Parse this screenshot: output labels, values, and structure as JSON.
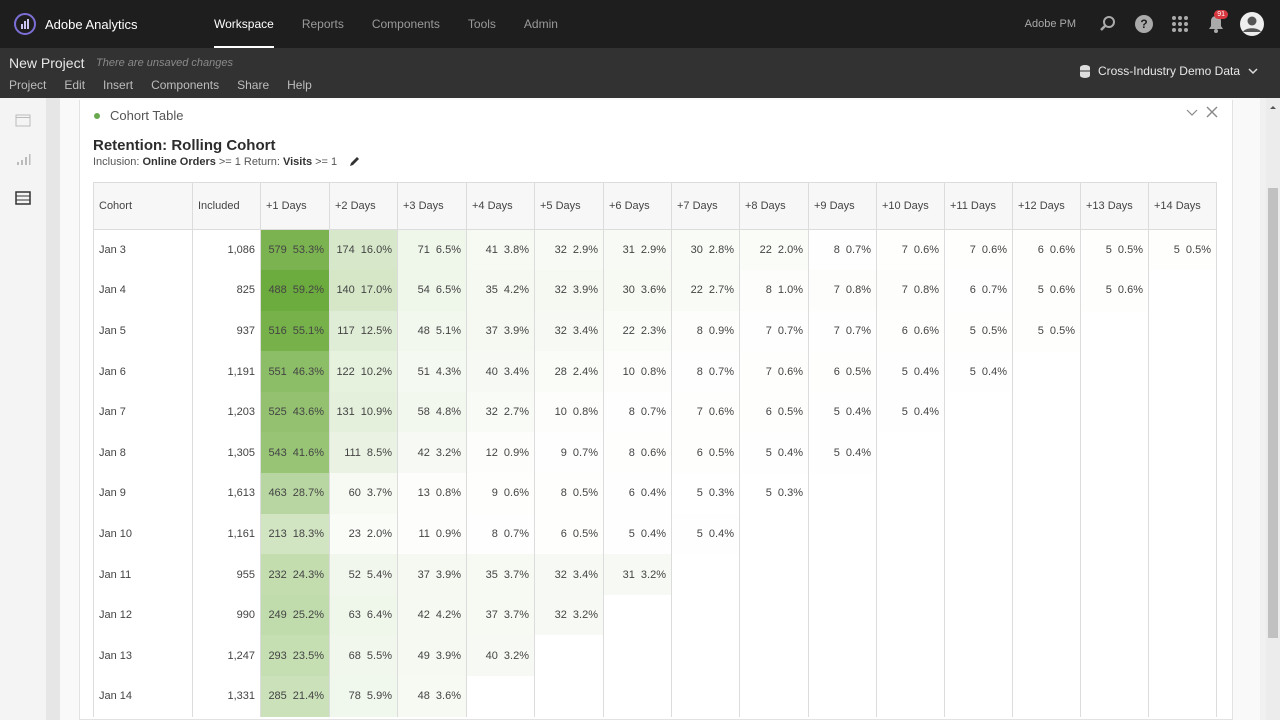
{
  "app": {
    "name": "Adobe Analytics"
  },
  "nav": [
    {
      "label": "Workspace",
      "active": true
    },
    {
      "label": "Reports"
    },
    {
      "label": "Components"
    },
    {
      "label": "Tools"
    },
    {
      "label": "Admin"
    }
  ],
  "top_right": {
    "org": "Adobe PM",
    "notifications": "91"
  },
  "project": {
    "title": "New Project",
    "status": "There are unsaved changes",
    "menu": [
      "Project",
      "Edit",
      "Insert",
      "Components",
      "Share",
      "Help"
    ],
    "dataset": "Cross-Industry Demo Data"
  },
  "panel": {
    "title": "Cohort Table",
    "viz_title": "Retention: Rolling Cohort",
    "inclusion_label": "Inclusion:",
    "inclusion_metric": "Online Orders",
    "inclusion_cond": ">= 1",
    "return_label": "Return:",
    "return_metric": "Visits",
    "return_cond": ">= 1"
  },
  "table": {
    "headers": [
      "Cohort",
      "Included",
      "+1 Days",
      "+2 Days",
      "+3 Days",
      "+4 Days",
      "+5 Days",
      "+6 Days",
      "+7 Days",
      "+8 Days",
      "+9 Days",
      "+10 Days",
      "+11 Days",
      "+12 Days",
      "+13 Days",
      "+14 Days"
    ],
    "rows": [
      {
        "cohort": "Jan 3",
        "included": "1,086",
        "cells": [
          [
            "579",
            "53.3%"
          ],
          [
            "174",
            "16.0%"
          ],
          [
            "71",
            "6.5%"
          ],
          [
            "41",
            "3.8%"
          ],
          [
            "32",
            "2.9%"
          ],
          [
            "31",
            "2.9%"
          ],
          [
            "30",
            "2.8%"
          ],
          [
            "22",
            "2.0%"
          ],
          [
            "8",
            "0.7%"
          ],
          [
            "7",
            "0.6%"
          ],
          [
            "7",
            "0.6%"
          ],
          [
            "6",
            "0.6%"
          ],
          [
            "5",
            "0.5%"
          ],
          [
            "5",
            "0.5%"
          ]
        ]
      },
      {
        "cohort": "Jan 4",
        "included": "825",
        "cells": [
          [
            "488",
            "59.2%"
          ],
          [
            "140",
            "17.0%"
          ],
          [
            "54",
            "6.5%"
          ],
          [
            "35",
            "4.2%"
          ],
          [
            "32",
            "3.9%"
          ],
          [
            "30",
            "3.6%"
          ],
          [
            "22",
            "2.7%"
          ],
          [
            "8",
            "1.0%"
          ],
          [
            "7",
            "0.8%"
          ],
          [
            "7",
            "0.8%"
          ],
          [
            "6",
            "0.7%"
          ],
          [
            "5",
            "0.6%"
          ],
          [
            "5",
            "0.6%"
          ]
        ]
      },
      {
        "cohort": "Jan 5",
        "included": "937",
        "cells": [
          [
            "516",
            "55.1%"
          ],
          [
            "117",
            "12.5%"
          ],
          [
            "48",
            "5.1%"
          ],
          [
            "37",
            "3.9%"
          ],
          [
            "32",
            "3.4%"
          ],
          [
            "22",
            "2.3%"
          ],
          [
            "8",
            "0.9%"
          ],
          [
            "7",
            "0.7%"
          ],
          [
            "7",
            "0.7%"
          ],
          [
            "6",
            "0.6%"
          ],
          [
            "5",
            "0.5%"
          ],
          [
            "5",
            "0.5%"
          ]
        ]
      },
      {
        "cohort": "Jan 6",
        "included": "1,191",
        "cells": [
          [
            "551",
            "46.3%"
          ],
          [
            "122",
            "10.2%"
          ],
          [
            "51",
            "4.3%"
          ],
          [
            "40",
            "3.4%"
          ],
          [
            "28",
            "2.4%"
          ],
          [
            "10",
            "0.8%"
          ],
          [
            "8",
            "0.7%"
          ],
          [
            "7",
            "0.6%"
          ],
          [
            "6",
            "0.5%"
          ],
          [
            "5",
            "0.4%"
          ],
          [
            "5",
            "0.4%"
          ]
        ]
      },
      {
        "cohort": "Jan 7",
        "included": "1,203",
        "cells": [
          [
            "525",
            "43.6%"
          ],
          [
            "131",
            "10.9%"
          ],
          [
            "58",
            "4.8%"
          ],
          [
            "32",
            "2.7%"
          ],
          [
            "10",
            "0.8%"
          ],
          [
            "8",
            "0.7%"
          ],
          [
            "7",
            "0.6%"
          ],
          [
            "6",
            "0.5%"
          ],
          [
            "5",
            "0.4%"
          ],
          [
            "5",
            "0.4%"
          ]
        ]
      },
      {
        "cohort": "Jan 8",
        "included": "1,305",
        "cells": [
          [
            "543",
            "41.6%"
          ],
          [
            "111",
            "8.5%"
          ],
          [
            "42",
            "3.2%"
          ],
          [
            "12",
            "0.9%"
          ],
          [
            "9",
            "0.7%"
          ],
          [
            "8",
            "0.6%"
          ],
          [
            "6",
            "0.5%"
          ],
          [
            "5",
            "0.4%"
          ],
          [
            "5",
            "0.4%"
          ]
        ]
      },
      {
        "cohort": "Jan 9",
        "included": "1,613",
        "cells": [
          [
            "463",
            "28.7%"
          ],
          [
            "60",
            "3.7%"
          ],
          [
            "13",
            "0.8%"
          ],
          [
            "9",
            "0.6%"
          ],
          [
            "8",
            "0.5%"
          ],
          [
            "6",
            "0.4%"
          ],
          [
            "5",
            "0.3%"
          ],
          [
            "5",
            "0.3%"
          ]
        ]
      },
      {
        "cohort": "Jan 10",
        "included": "1,161",
        "cells": [
          [
            "213",
            "18.3%"
          ],
          [
            "23",
            "2.0%"
          ],
          [
            "11",
            "0.9%"
          ],
          [
            "8",
            "0.7%"
          ],
          [
            "6",
            "0.5%"
          ],
          [
            "5",
            "0.4%"
          ],
          [
            "5",
            "0.4%"
          ]
        ]
      },
      {
        "cohort": "Jan 11",
        "included": "955",
        "cells": [
          [
            "232",
            "24.3%"
          ],
          [
            "52",
            "5.4%"
          ],
          [
            "37",
            "3.9%"
          ],
          [
            "35",
            "3.7%"
          ],
          [
            "32",
            "3.4%"
          ],
          [
            "31",
            "3.2%"
          ]
        ]
      },
      {
        "cohort": "Jan 12",
        "included": "990",
        "cells": [
          [
            "249",
            "25.2%"
          ],
          [
            "63",
            "6.4%"
          ],
          [
            "42",
            "4.2%"
          ],
          [
            "37",
            "3.7%"
          ],
          [
            "32",
            "3.2%"
          ]
        ]
      },
      {
        "cohort": "Jan 13",
        "included": "1,247",
        "cells": [
          [
            "293",
            "23.5%"
          ],
          [
            "68",
            "5.5%"
          ],
          [
            "49",
            "3.9%"
          ],
          [
            "40",
            "3.2%"
          ]
        ]
      },
      {
        "cohort": "Jan 14",
        "included": "1,331",
        "cells": [
          [
            "285",
            "21.4%"
          ],
          [
            "78",
            "5.9%"
          ],
          [
            "48",
            "3.6%"
          ]
        ]
      }
    ]
  },
  "colors": {
    "heat": "#6aaa3a",
    "accent_dot": "#6aa84f",
    "badge": "#d7373f"
  }
}
